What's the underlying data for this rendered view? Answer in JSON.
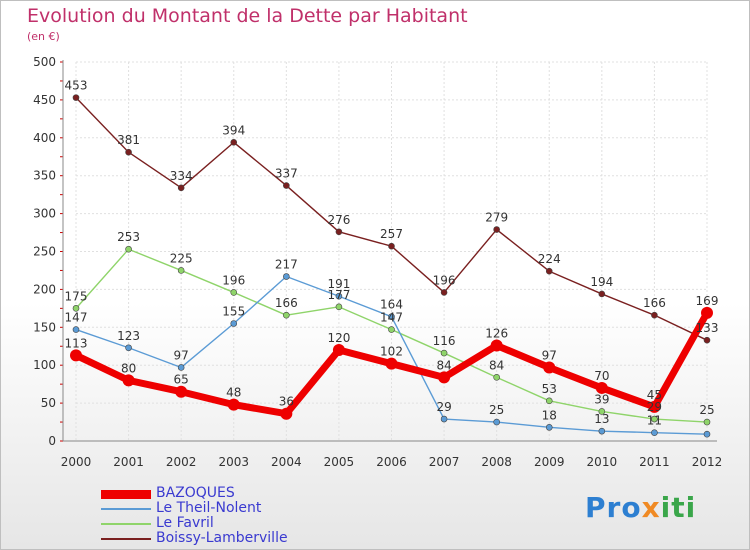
{
  "chart_data": {
    "type": "line",
    "title": "Evolution du Montant de la Dette par Habitant",
    "subtitle": "(en €)",
    "x": [
      "2000",
      "2001",
      "2002",
      "2003",
      "2004",
      "2005",
      "2006",
      "2007",
      "2008",
      "2009",
      "2010",
      "2011",
      "2012"
    ],
    "ylim": [
      0,
      500
    ],
    "yticks": [
      0,
      50,
      100,
      150,
      200,
      250,
      300,
      350,
      400,
      450,
      500
    ],
    "grid": true,
    "legend_position": "bottom-left",
    "series": [
      {
        "name": "Boissy-Lamberville",
        "color": "#7a2020",
        "values": [
          453,
          381,
          334,
          394,
          337,
          276,
          257,
          196,
          279,
          224,
          194,
          166,
          133
        ]
      },
      {
        "name": "Le Favril",
        "color": "#8fd46a",
        "values": [
          175,
          253,
          225,
          196,
          166,
          177,
          147,
          116,
          84,
          53,
          39,
          29,
          25
        ]
      },
      {
        "name": "Le Theil-Nolent",
        "color": "#5b9bd5",
        "values": [
          147,
          123,
          97,
          155,
          217,
          191,
          164,
          29,
          25,
          18,
          13,
          11,
          9
        ]
      },
      {
        "name": "BAZOQUES",
        "color": "#ee0000",
        "values": [
          113,
          80,
          65,
          48,
          36,
          120,
          102,
          84,
          126,
          97,
          70,
          45,
          169
        ]
      }
    ],
    "labels": {
      "Boissy-Lamberville": [
        "453",
        "381",
        "334",
        "394",
        "337",
        "276",
        "257",
        "196",
        "279",
        "224",
        "194",
        "166",
        "133"
      ],
      "Le Favril": [
        "175",
        "253",
        "225",
        "196",
        "166",
        "177",
        "147",
        "116",
        "84",
        "53",
        "39",
        "29",
        "25"
      ],
      "Le Theil-Nolent": [
        "147",
        "123",
        "97",
        "155",
        "217",
        "191",
        "164",
        "29",
        "25",
        "18",
        "13",
        "11",
        ""
      ],
      "BAZOQUES": [
        "113",
        "80",
        "65",
        "48",
        "36",
        "120",
        "102",
        "84",
        "126",
        "97",
        "70",
        "45",
        "169"
      ]
    },
    "legend_order": [
      "BAZOQUES",
      "Le Theil-Nolent",
      "Le Favril",
      "Boissy-Lamberville"
    ]
  },
  "logo": {
    "part1": "Pro",
    "part2": "x",
    "part3": "iti"
  }
}
